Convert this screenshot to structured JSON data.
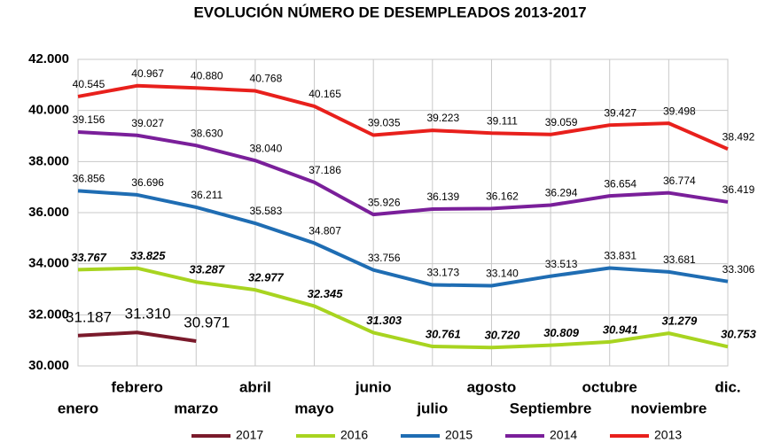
{
  "chart_data": {
    "type": "line",
    "title": "EVOLUCIÓN NÚMERO DE DESEMPLEADOS 2013-2017",
    "categories": [
      "enero",
      "febrero",
      "marzo",
      "abril",
      "mayo",
      "junio",
      "julio",
      "agosto",
      "Septiembre",
      "octubre",
      "noviembre",
      "dic."
    ],
    "ylim": [
      30000,
      42000
    ],
    "yticks": [
      {
        "value": 30000,
        "label": "30.000"
      },
      {
        "value": 32000,
        "label": "32.000"
      },
      {
        "value": 34000,
        "label": "34.000"
      },
      {
        "value": 36000,
        "label": "36.000"
      },
      {
        "value": 38000,
        "label": "38.000"
      },
      {
        "value": 40000,
        "label": "40.000"
      },
      {
        "value": 42000,
        "label": "42.000"
      }
    ],
    "grid": true,
    "legend": "bottom",
    "series": [
      {
        "name": "2017",
        "color": "#7a1a2b",
        "values": [
          31187,
          31310,
          30971,
          null,
          null,
          null,
          null,
          null,
          null,
          null,
          null,
          null
        ],
        "value_labels": [
          "31.187",
          "31.310",
          "30.971",
          null,
          null,
          null,
          null,
          null,
          null,
          null,
          null,
          null
        ]
      },
      {
        "name": "2016",
        "color": "#a8d420",
        "values": [
          33767,
          33825,
          33287,
          32977,
          32345,
          31303,
          30761,
          30720,
          30809,
          30941,
          31279,
          30753
        ],
        "value_labels": [
          "33.767",
          "33.825",
          "33.287",
          "32.977",
          "32.345",
          "31.303",
          "30.761",
          "30.720",
          "30.809",
          "30.941",
          "31.279",
          "30.753"
        ]
      },
      {
        "name": "2015",
        "color": "#1f6db3",
        "values": [
          36856,
          36696,
          36211,
          35583,
          34807,
          33756,
          33173,
          33140,
          33513,
          33831,
          33681,
          33306
        ],
        "value_labels": [
          "36.856",
          "36.696",
          "36.211",
          "35.583",
          "34.807",
          "33.756",
          "33.173",
          "33.140",
          "33.513",
          "33.831",
          "33.681",
          "33.306"
        ]
      },
      {
        "name": "2014",
        "color": "#7a1f9a",
        "values": [
          39156,
          39027,
          38630,
          38040,
          37186,
          35926,
          36139,
          36162,
          36294,
          36654,
          36774,
          36419
        ],
        "value_labels": [
          "39.156",
          "39.027",
          "38.630",
          "38.040",
          "37.186",
          "35.926",
          "36.139",
          "36.162",
          "36.294",
          "36.654",
          "36.774",
          "36.419"
        ]
      },
      {
        "name": "2013",
        "color": "#e8201c",
        "values": [
          40545,
          40967,
          40880,
          40768,
          40165,
          39035,
          39223,
          39111,
          39059,
          39427,
          39498,
          38492
        ],
        "value_labels": [
          "40.545",
          "40.967",
          "40.880",
          "40.768",
          "40.165",
          "39.035",
          "39.223",
          "39.111",
          "39.059",
          "39.427",
          "39.498",
          "38.492"
        ]
      }
    ]
  }
}
